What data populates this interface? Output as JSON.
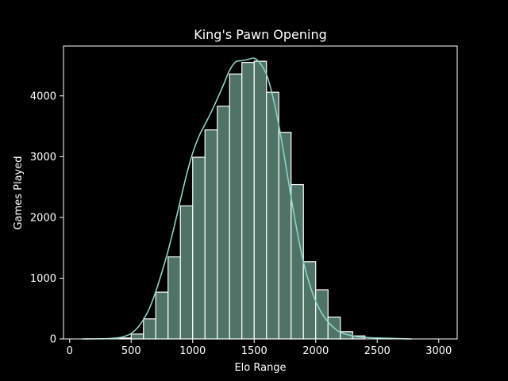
{
  "chart_data": {
    "type": "bar",
    "title": "King's Pawn Opening",
    "xlabel": "Elo Range",
    "ylabel": "Games Played",
    "xlim": [
      -50,
      3150
    ],
    "ylim": [
      0,
      4820
    ],
    "xticks": [
      0,
      500,
      1000,
      1500,
      2000,
      2500,
      3000
    ],
    "yticks": [
      0,
      1000,
      2000,
      3000,
      4000
    ],
    "grid": false,
    "bin_width": 100,
    "bins": [
      {
        "x_start": 400,
        "x_end": 500,
        "value": 15
      },
      {
        "x_start": 500,
        "x_end": 600,
        "value": 80
      },
      {
        "x_start": 600,
        "x_end": 700,
        "value": 330
      },
      {
        "x_start": 700,
        "x_end": 800,
        "value": 770
      },
      {
        "x_start": 800,
        "x_end": 900,
        "value": 1350
      },
      {
        "x_start": 900,
        "x_end": 1000,
        "value": 2190
      },
      {
        "x_start": 1000,
        "x_end": 1100,
        "value": 2990
      },
      {
        "x_start": 1100,
        "x_end": 1200,
        "value": 3440
      },
      {
        "x_start": 1200,
        "x_end": 1300,
        "value": 3830
      },
      {
        "x_start": 1300,
        "x_end": 1400,
        "value": 4360
      },
      {
        "x_start": 1400,
        "x_end": 1500,
        "value": 4550
      },
      {
        "x_start": 1500,
        "x_end": 1600,
        "value": 4570
      },
      {
        "x_start": 1600,
        "x_end": 1700,
        "value": 4060
      },
      {
        "x_start": 1700,
        "x_end": 1800,
        "value": 3400
      },
      {
        "x_start": 1800,
        "x_end": 1900,
        "value": 2540
      },
      {
        "x_start": 1900,
        "x_end": 2000,
        "value": 1270
      },
      {
        "x_start": 2000,
        "x_end": 2100,
        "value": 810
      },
      {
        "x_start": 2100,
        "x_end": 2200,
        "value": 360
      },
      {
        "x_start": 2200,
        "x_end": 2300,
        "value": 120
      },
      {
        "x_start": 2300,
        "x_end": 2400,
        "value": 50
      }
    ],
    "kde": {
      "x": [
        100,
        300,
        400,
        450,
        500,
        550,
        600,
        650,
        700,
        750,
        800,
        850,
        900,
        950,
        1000,
        1050,
        1100,
        1150,
        1200,
        1250,
        1300,
        1350,
        1400,
        1450,
        1500,
        1550,
        1600,
        1650,
        1700,
        1750,
        1800,
        1850,
        1900,
        1950,
        2000,
        2050,
        2100,
        2150,
        2200,
        2300,
        2400,
        2500,
        2600,
        2700,
        2780
      ],
      "y": [
        0,
        5,
        20,
        45,
        90,
        180,
        320,
        510,
        780,
        1100,
        1450,
        1850,
        2280,
        2700,
        3060,
        3330,
        3530,
        3730,
        3950,
        4180,
        4420,
        4560,
        4580,
        4600,
        4620,
        4530,
        4350,
        4000,
        3520,
        2940,
        2330,
        1760,
        1270,
        900,
        620,
        420,
        280,
        180,
        110,
        50,
        25,
        15,
        10,
        4,
        0
      ]
    },
    "colors": {
      "bar_fill": "#4f7367",
      "bar_edge": "#ffffff",
      "kde_line": "#8dd3c7",
      "axes": "#ffffff",
      "background": "#000000"
    }
  }
}
